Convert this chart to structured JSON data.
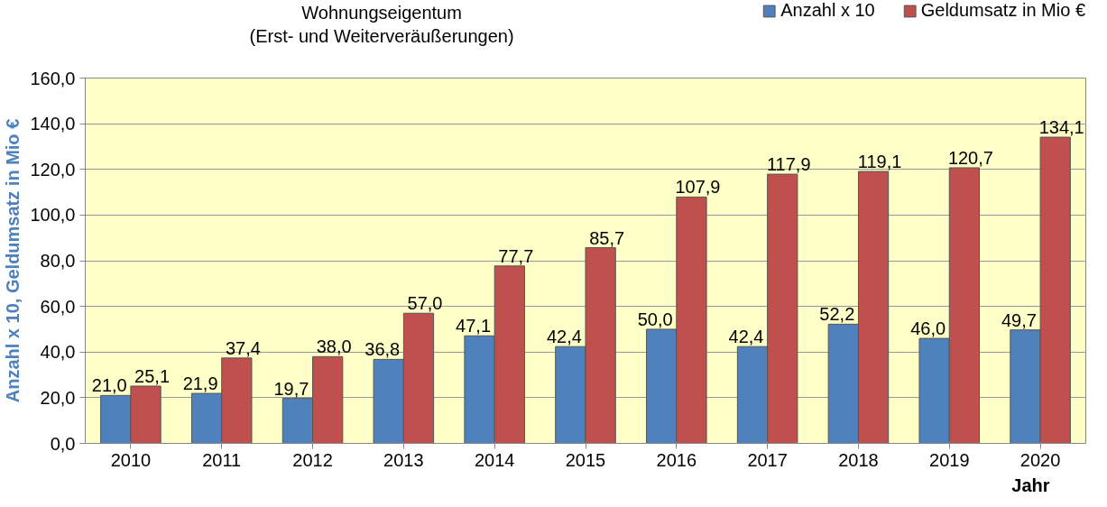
{
  "chart_data": {
    "type": "bar",
    "title": "Wohnungseigentum\n(Erst- und Weiterveräußerungen)",
    "xlabel": "Jahr",
    "ylabel": "Anzahl x 10, Geldumsatz in Mio €",
    "categories": [
      "2010",
      "2011",
      "2012",
      "2013",
      "2014",
      "2015",
      "2016",
      "2017",
      "2018",
      "2019",
      "2020"
    ],
    "series": [
      {
        "name": "Anzahl x 10",
        "color": "#4f81bd",
        "values": [
          21.0,
          21.9,
          19.7,
          36.8,
          47.1,
          42.4,
          50.0,
          42.4,
          52.2,
          46.0,
          49.7
        ],
        "value_labels": [
          "21,0",
          "21,9",
          "19,7",
          "36,8",
          "47,1",
          "42,4",
          "50,0",
          "42,4",
          "52,2",
          "46,0",
          "49,7"
        ]
      },
      {
        "name": "Geldumsatz in Mio €",
        "color": "#c0504d",
        "values": [
          25.1,
          37.4,
          38.0,
          57.0,
          77.7,
          85.7,
          107.9,
          117.9,
          119.1,
          120.7,
          134.1
        ],
        "value_labels": [
          "25,1",
          "37,4",
          "38,0",
          "57,0",
          "77,7",
          "85,7",
          "107,9",
          "117,9",
          "119,1",
          "120,7",
          "134,1"
        ]
      }
    ],
    "ylim": [
      0,
      160
    ],
    "yticks": [
      {
        "value": 0,
        "label": "0,0"
      },
      {
        "value": 20,
        "label": "20,0"
      },
      {
        "value": 40,
        "label": "40,0"
      },
      {
        "value": 60,
        "label": "60,0"
      },
      {
        "value": 80,
        "label": "80,0"
      },
      {
        "value": 100,
        "label": "100,0"
      },
      {
        "value": 120,
        "label": "120,0"
      },
      {
        "value": 140,
        "label": "140,0"
      },
      {
        "value": 160,
        "label": "160,0"
      }
    ],
    "grid": "y",
    "legend": "top right"
  }
}
